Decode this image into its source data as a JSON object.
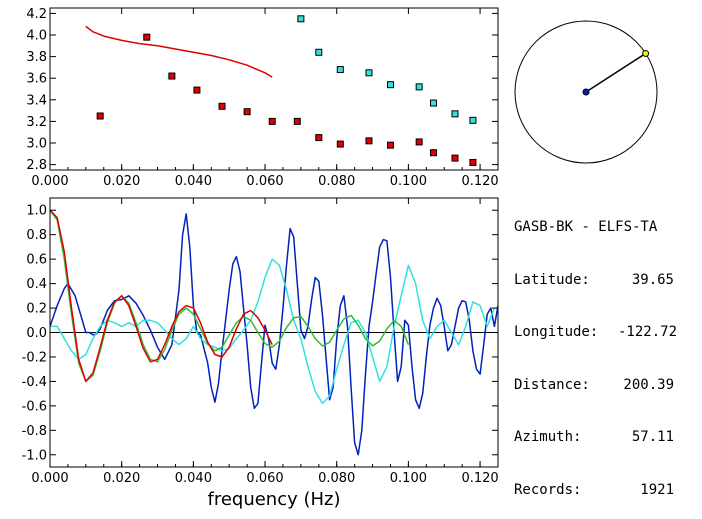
{
  "colors": {
    "red": "#e00000",
    "cyan": "#33e0e0",
    "navy": "#0022bb",
    "green": "#33bb33",
    "yellow": "#f0f000",
    "black": "#000000"
  },
  "info": {
    "station_pair": "GASB-BK - ELFS-TA",
    "rows": [
      {
        "label": "Latitude:",
        "value": "39.65"
      },
      {
        "label": "Longitude:",
        "value": "-122.72"
      },
      {
        "label": "Distance:",
        "value": "200.39"
      },
      {
        "label": "Azimuth:",
        "value": "57.11"
      },
      {
        "label": "Records:",
        "value": "1921"
      }
    ]
  },
  "azimuth_dial": {
    "azimuth_deg": 57.11
  },
  "chart_data": [
    {
      "type": "scatter",
      "xlim": [
        0.0,
        0.125
      ],
      "ylim": [
        2.75,
        4.25
      ],
      "x_ticks": [
        "0.000",
        "0.020",
        "0.040",
        "0.060",
        "0.080",
        "0.100",
        "0.120"
      ],
      "y_ticks": [
        "2.8",
        "3.0",
        "3.2",
        "3.4",
        "3.6",
        "3.8",
        "4.0",
        "4.2"
      ],
      "series": [
        {
          "color": "red",
          "kind": "line",
          "points": [
            [
              0.01,
              4.08
            ],
            [
              0.012,
              4.03
            ],
            [
              0.015,
              3.99
            ],
            [
              0.02,
              3.95
            ],
            [
              0.025,
              3.92
            ],
            [
              0.03,
              3.9
            ],
            [
              0.035,
              3.87
            ],
            [
              0.04,
              3.84
            ],
            [
              0.045,
              3.81
            ],
            [
              0.05,
              3.77
            ],
            [
              0.055,
              3.72
            ],
            [
              0.06,
              3.65
            ],
            [
              0.062,
              3.61
            ]
          ]
        },
        {
          "color": "red",
          "kind": "markers",
          "points": [
            [
              0.014,
              3.25
            ],
            [
              0.027,
              3.98
            ],
            [
              0.034,
              3.62
            ],
            [
              0.041,
              3.49
            ],
            [
              0.048,
              3.34
            ],
            [
              0.055,
              3.29
            ],
            [
              0.062,
              3.2
            ],
            [
              0.069,
              3.2
            ],
            [
              0.075,
              3.05
            ],
            [
              0.081,
              2.99
            ],
            [
              0.089,
              3.02
            ],
            [
              0.095,
              2.98
            ],
            [
              0.103,
              3.01
            ],
            [
              0.107,
              2.91
            ],
            [
              0.113,
              2.86
            ],
            [
              0.118,
              2.82
            ]
          ]
        },
        {
          "color": "cyan",
          "kind": "markers",
          "points": [
            [
              0.07,
              4.15
            ],
            [
              0.075,
              3.84
            ],
            [
              0.081,
              3.68
            ],
            [
              0.089,
              3.65
            ],
            [
              0.095,
              3.54
            ],
            [
              0.103,
              3.52
            ],
            [
              0.107,
              3.37
            ],
            [
              0.113,
              3.27
            ],
            [
              0.118,
              3.21
            ]
          ]
        }
      ]
    },
    {
      "type": "line",
      "xlabel": "frequency (Hz)",
      "xlim": [
        0.0,
        0.125
      ],
      "ylim": [
        -1.1,
        1.1
      ],
      "x_ticks": [
        "0.000",
        "0.020",
        "0.040",
        "0.060",
        "0.080",
        "0.100",
        "0.120"
      ],
      "y_ticks": [
        "1.0",
        "0.8",
        "0.6",
        "0.4",
        "0.2",
        "0.0",
        "-0.2",
        "-0.4",
        "-0.6",
        "-0.8",
        "-1.0"
      ],
      "series": [
        {
          "color": "navy",
          "x": [
            0.0,
            0.002,
            0.004,
            0.005,
            0.007,
            0.009,
            0.01,
            0.011,
            0.012,
            0.013,
            0.014,
            0.016,
            0.018,
            0.02,
            0.022,
            0.024,
            0.026,
            0.028,
            0.03,
            0.032,
            0.034,
            0.035,
            0.036,
            0.037,
            0.038,
            0.039,
            0.04,
            0.041,
            0.042,
            0.044,
            0.045,
            0.046,
            0.047,
            0.048,
            0.049,
            0.05,
            0.051,
            0.052,
            0.053,
            0.054,
            0.055,
            0.056,
            0.057,
            0.058,
            0.059,
            0.06,
            0.061,
            0.062,
            0.063,
            0.064,
            0.065,
            0.066,
            0.067,
            0.068,
            0.069,
            0.07,
            0.071,
            0.072,
            0.073,
            0.074,
            0.075,
            0.076,
            0.077,
            0.078,
            0.079,
            0.08,
            0.081,
            0.082,
            0.083,
            0.084,
            0.085,
            0.086,
            0.087,
            0.088,
            0.089,
            0.09,
            0.091,
            0.092,
            0.093,
            0.094,
            0.095,
            0.096,
            0.097,
            0.098,
            0.099,
            0.1,
            0.101,
            0.102,
            0.103,
            0.104,
            0.105,
            0.106,
            0.107,
            0.108,
            0.109,
            0.11,
            0.111,
            0.112,
            0.113,
            0.114,
            0.115,
            0.116,
            0.117,
            0.118,
            0.119,
            0.12,
            0.121,
            0.122,
            0.123,
            0.124,
            0.125
          ],
          "y": [
            0.05,
            0.22,
            0.36,
            0.4,
            0.3,
            0.1,
            0.0,
            0.0,
            -0.02,
            -0.01,
            0.03,
            0.18,
            0.26,
            0.27,
            0.3,
            0.24,
            0.14,
            0.02,
            -0.12,
            -0.22,
            -0.1,
            0.12,
            0.35,
            0.8,
            0.97,
            0.7,
            0.22,
            0.0,
            -0.02,
            -0.25,
            -0.45,
            -0.57,
            -0.42,
            -0.15,
            0.1,
            0.35,
            0.56,
            0.62,
            0.5,
            0.2,
            -0.1,
            -0.45,
            -0.62,
            -0.58,
            -0.25,
            0.06,
            -0.05,
            -0.25,
            -0.3,
            -0.1,
            0.2,
            0.55,
            0.85,
            0.78,
            0.4,
            0.02,
            -0.05,
            0.05,
            0.27,
            0.45,
            0.42,
            0.15,
            -0.2,
            -0.55,
            -0.45,
            -0.05,
            0.22,
            0.3,
            0.05,
            -0.45,
            -0.9,
            -1.0,
            -0.8,
            -0.35,
            0.05,
            0.25,
            0.48,
            0.7,
            0.76,
            0.75,
            0.45,
            0.0,
            -0.4,
            -0.28,
            0.1,
            0.06,
            -0.28,
            -0.55,
            -0.62,
            -0.5,
            -0.2,
            0.06,
            0.2,
            0.28,
            0.22,
            0.05,
            -0.15,
            -0.1,
            0.05,
            0.2,
            0.26,
            0.25,
            0.1,
            -0.15,
            -0.3,
            -0.34,
            -0.1,
            0.15,
            0.2,
            0.05,
            0.22
          ]
        },
        {
          "color": "cyan",
          "x": [
            0.0,
            0.002,
            0.004,
            0.006,
            0.008,
            0.01,
            0.012,
            0.014,
            0.016,
            0.018,
            0.02,
            0.022,
            0.024,
            0.026,
            0.028,
            0.03,
            0.032,
            0.034,
            0.036,
            0.038,
            0.04,
            0.042,
            0.044,
            0.046,
            0.048,
            0.05,
            0.052,
            0.054,
            0.056,
            0.058,
            0.06,
            0.062,
            0.064,
            0.066,
            0.068,
            0.07,
            0.072,
            0.074,
            0.076,
            0.078,
            0.08,
            0.082,
            0.084,
            0.086,
            0.088,
            0.09,
            0.092,
            0.094,
            0.096,
            0.098,
            0.1,
            0.102,
            0.104,
            0.106,
            0.108,
            0.11,
            0.112,
            0.114,
            0.116,
            0.118,
            0.12,
            0.122,
            0.124
          ],
          "y": [
            0.05,
            0.05,
            -0.05,
            -0.15,
            -0.22,
            -0.18,
            -0.05,
            0.05,
            0.1,
            0.08,
            0.05,
            0.08,
            0.05,
            0.1,
            0.1,
            0.08,
            0.02,
            -0.05,
            -0.1,
            -0.05,
            0.05,
            -0.05,
            -0.1,
            -0.12,
            -0.15,
            -0.13,
            -0.05,
            0.02,
            0.1,
            0.25,
            0.45,
            0.6,
            0.55,
            0.35,
            0.1,
            -0.05,
            -0.28,
            -0.48,
            -0.58,
            -0.52,
            -0.3,
            -0.1,
            0.08,
            0.1,
            0.0,
            -0.2,
            -0.4,
            -0.28,
            0.05,
            0.3,
            0.55,
            0.4,
            0.1,
            -0.05,
            0.05,
            0.1,
            0.0,
            -0.1,
            0.05,
            0.25,
            0.22,
            0.05,
            0.2
          ]
        },
        {
          "color": "green",
          "x": [
            0.0,
            0.002,
            0.004,
            0.006,
            0.008,
            0.01,
            0.012,
            0.014,
            0.016,
            0.018,
            0.02,
            0.022,
            0.024,
            0.026,
            0.028,
            0.03,
            0.032,
            0.034,
            0.036,
            0.038,
            0.04,
            0.042,
            0.044,
            0.046,
            0.048,
            0.05,
            0.052,
            0.054,
            0.056,
            0.058,
            0.06,
            0.062,
            0.064,
            0.066,
            0.068,
            0.07,
            0.072,
            0.074,
            0.076,
            0.078,
            0.08,
            0.082,
            0.084,
            0.086,
            0.088,
            0.09,
            0.092,
            0.094,
            0.096,
            0.098,
            0.1
          ],
          "y": [
            1.0,
            0.92,
            0.6,
            0.15,
            -0.25,
            -0.4,
            -0.35,
            -0.15,
            0.08,
            0.24,
            0.3,
            0.24,
            0.08,
            -0.1,
            -0.22,
            -0.24,
            -0.14,
            0.02,
            0.15,
            0.2,
            0.15,
            0.03,
            -0.09,
            -0.15,
            -0.12,
            -0.02,
            0.08,
            0.13,
            0.1,
            0.0,
            -0.09,
            -0.12,
            -0.07,
            0.04,
            0.12,
            0.13,
            0.05,
            -0.05,
            -0.11,
            -0.08,
            0.02,
            0.11,
            0.14,
            0.06,
            -0.05,
            -0.11,
            -0.07,
            0.03,
            0.1,
            0.05,
            -0.1
          ]
        },
        {
          "color": "red",
          "x": [
            0.0,
            0.002,
            0.004,
            0.006,
            0.008,
            0.01,
            0.012,
            0.014,
            0.016,
            0.018,
            0.02,
            0.022,
            0.024,
            0.026,
            0.028,
            0.03,
            0.032,
            0.034,
            0.036,
            0.038,
            0.04,
            0.042,
            0.044,
            0.046,
            0.048,
            0.05,
            0.052,
            0.054,
            0.056,
            0.058,
            0.06,
            0.062
          ],
          "y": [
            1.0,
            0.94,
            0.66,
            0.2,
            -0.22,
            -0.4,
            -0.33,
            -0.12,
            0.1,
            0.25,
            0.3,
            0.22,
            0.05,
            -0.13,
            -0.24,
            -0.22,
            -0.1,
            0.05,
            0.17,
            0.22,
            0.2,
            0.08,
            -0.08,
            -0.18,
            -0.2,
            -0.12,
            0.03,
            0.15,
            0.18,
            0.12,
            0.02,
            -0.1
          ]
        }
      ]
    }
  ]
}
